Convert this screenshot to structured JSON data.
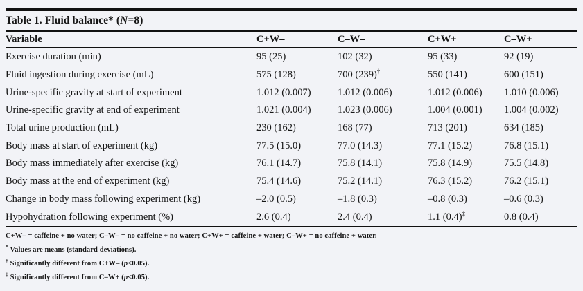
{
  "page": {
    "background_color": "#f2f3f7",
    "text_color": "#161616",
    "rule_color": "#111111"
  },
  "table": {
    "title": {
      "pre": "Table 1. Fluid balance* (",
      "italic": "N",
      "post": "=8)"
    },
    "columns": [
      "Variable",
      "C+W–",
      "C–W–",
      "C+W+",
      "C–W+"
    ],
    "rows": [
      {
        "label": "Exercise duration (min)",
        "values": [
          "95 (25)",
          "102 (32)",
          "95 (33)",
          "92 (19)"
        ],
        "sups": [
          "",
          "",
          "",
          ""
        ]
      },
      {
        "label": "Fluid ingestion during exercise (mL)",
        "values": [
          "575 (128)",
          "700 (239)",
          "550 (141)",
          "600 (151)"
        ],
        "sups": [
          "",
          "†",
          "",
          ""
        ]
      },
      {
        "label": "Urine-specific gravity at start of experiment",
        "values": [
          "1.012 (0.007)",
          "1.012 (0.006)",
          "1.012 (0.006)",
          "1.010 (0.006)"
        ],
        "sups": [
          "",
          "",
          "",
          ""
        ]
      },
      {
        "label": "Urine-specific gravity at end of experiment",
        "values": [
          "1.021 (0.004)",
          "1.023 (0.006)",
          "1.004 (0.001)",
          "1.004 (0.002)"
        ],
        "sups": [
          "",
          "",
          "",
          ""
        ]
      },
      {
        "label": "Total urine production (mL)",
        "values": [
          "230 (162)",
          "168 (77)",
          "713 (201)",
          "634 (185)"
        ],
        "sups": [
          "",
          "",
          "",
          ""
        ]
      },
      {
        "label": "Body mass at start of experiment (kg)",
        "values": [
          "77.5 (15.0)",
          "77.0 (14.3)",
          "77.1 (15.2)",
          "76.8 (15.1)"
        ],
        "sups": [
          "",
          "",
          "",
          ""
        ]
      },
      {
        "label": "Body mass immediately after exercise (kg)",
        "values": [
          "76.1 (14.7)",
          "75.8 (14.1)",
          "75.8 (14.9)",
          "75.5 (14.8)"
        ],
        "sups": [
          "",
          "",
          "",
          ""
        ]
      },
      {
        "label": "Body mass at the end of experiment (kg)",
        "values": [
          "75.4 (14.6)",
          "75.2 (14.1)",
          "76.3 (15.2)",
          "76.2 (15.1)"
        ],
        "sups": [
          "",
          "",
          "",
          ""
        ]
      },
      {
        "label": "Change in body mass following experiment (kg)",
        "values": [
          "–2.0 (0.5)",
          "–1.8 (0.3)",
          "–0.8 (0.3)",
          "–0.6 (0.3)"
        ],
        "sups": [
          "",
          "",
          "",
          ""
        ]
      },
      {
        "label": "Hypohydration following experiment (%)",
        "values": [
          "2.6 (0.4)",
          "2.4 (0.4)",
          "1.1 (0.4)",
          "0.8 (0.4)"
        ],
        "sups": [
          "",
          "",
          "‡",
          ""
        ]
      }
    ],
    "footnotes": [
      {
        "sup": "",
        "pre": "C+W– = caffeine + no water; C–W– = no caffeine + no water; C+W+ = caffeine + water; C–W+ = no caffeine + water.",
        "italic": "",
        "post": ""
      },
      {
        "sup": "*",
        "pre": " Values are means (standard deviations).",
        "italic": "",
        "post": ""
      },
      {
        "sup": "†",
        "pre": " Significantly different from C+W– (",
        "italic": "p",
        "post": "<0.05)."
      },
      {
        "sup": "‡",
        "pre": " Significantly different from C–W+ (",
        "italic": "p",
        "post": "<0.05)."
      }
    ]
  }
}
